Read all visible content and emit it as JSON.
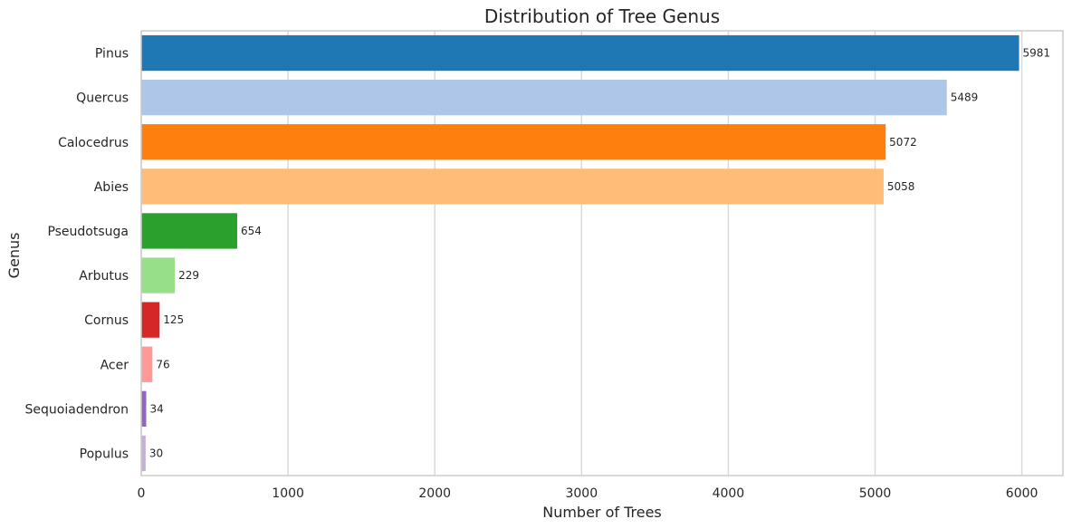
{
  "chart_data": {
    "type": "bar",
    "orientation": "horizontal",
    "title": "Distribution of Tree Genus",
    "xlabel": "Number of Trees",
    "ylabel": "Genus",
    "categories": [
      "Pinus",
      "Quercus",
      "Calocedrus",
      "Abies",
      "Pseudotsuga",
      "Arbutus",
      "Cornus",
      "Acer",
      "Sequoiadendron",
      "Populus"
    ],
    "values": [
      5981,
      5489,
      5072,
      5058,
      654,
      229,
      125,
      76,
      34,
      30
    ],
    "colors": [
      "#1f77b4",
      "#aec7e8",
      "#ff7f0e",
      "#ffbb78",
      "#2ca02c",
      "#98df8a",
      "#d62728",
      "#ff9896",
      "#9467bd",
      "#c5b0d5"
    ],
    "xlim": [
      0,
      6280
    ],
    "xticks": [
      0,
      1000,
      2000,
      3000,
      4000,
      5000,
      6000
    ],
    "grid": true,
    "show_value_labels": true
  }
}
